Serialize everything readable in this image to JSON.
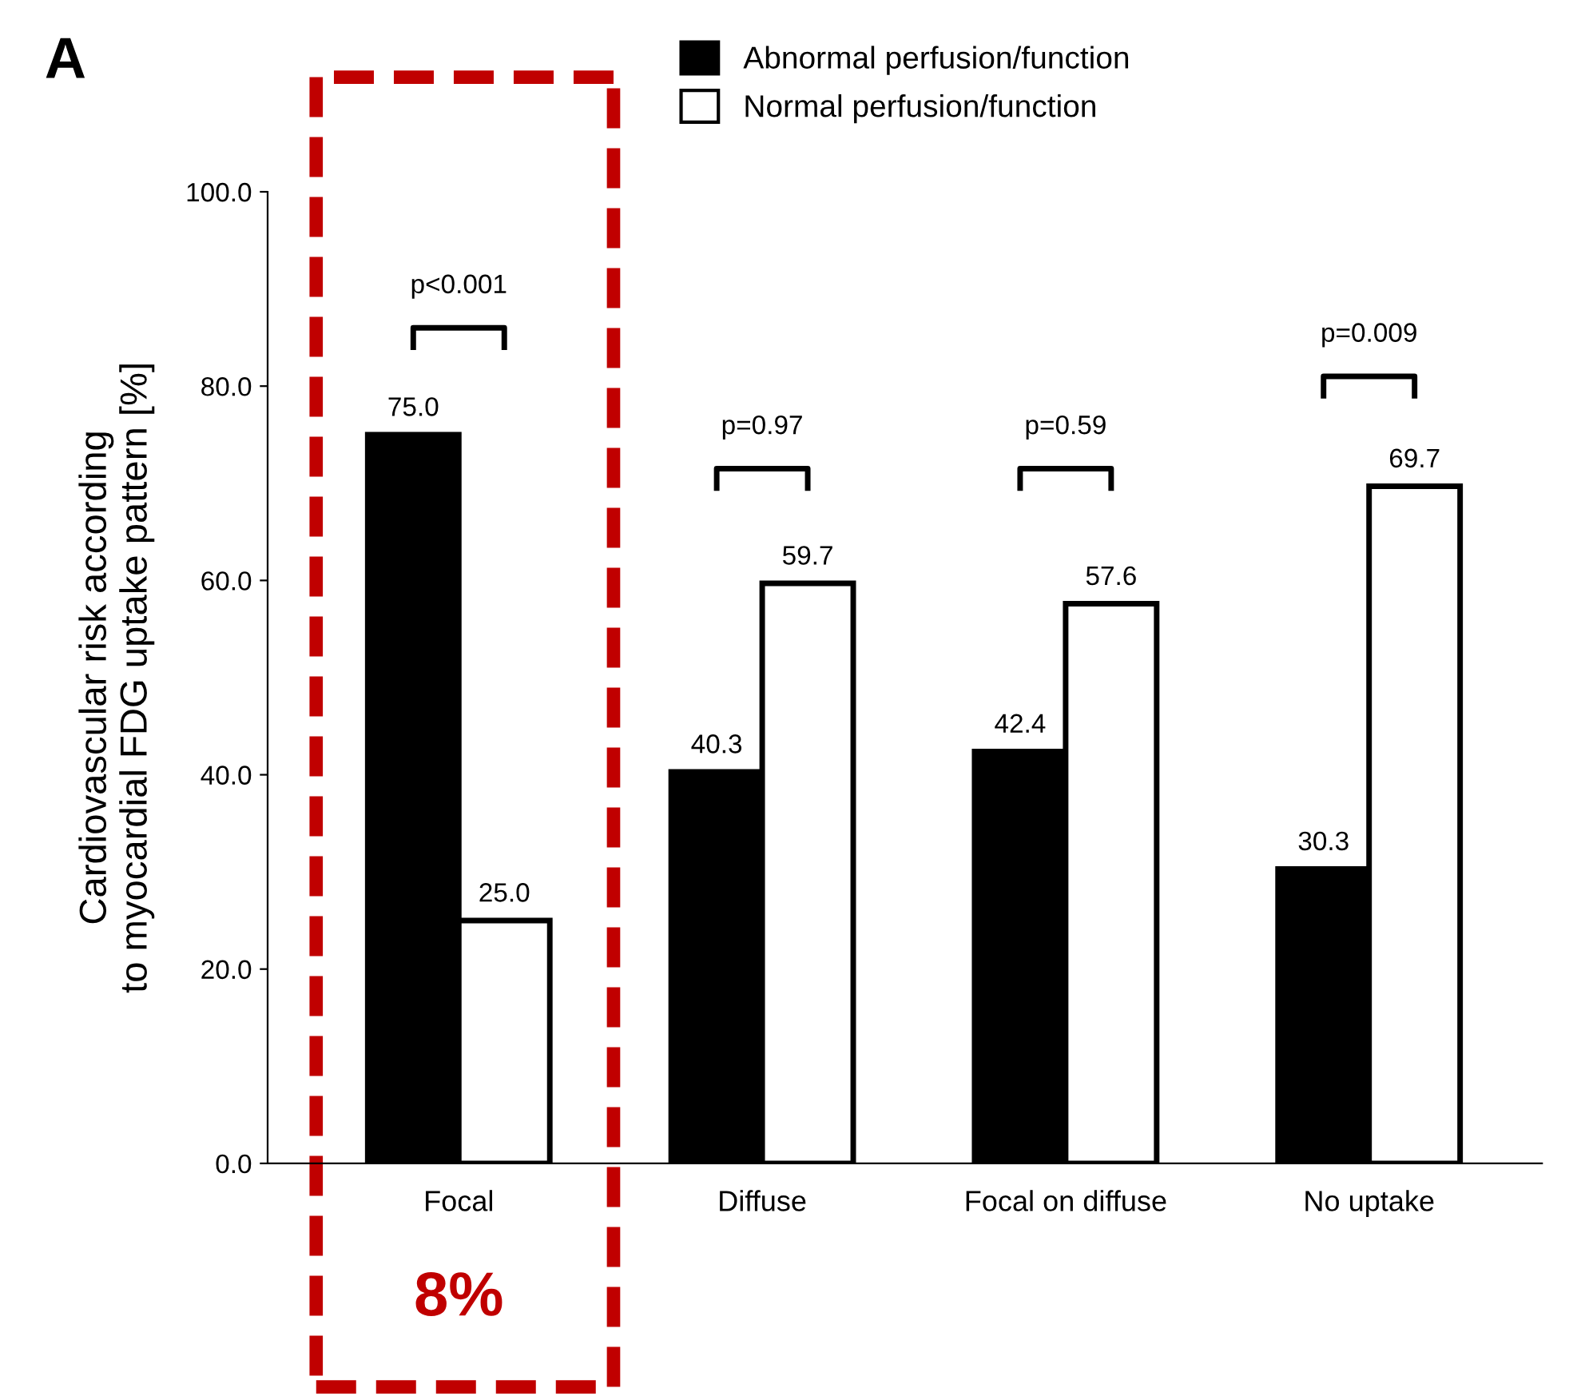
{
  "chart_data": {
    "type": "bar",
    "ylabel": "Cardiovascular risk according\nto myocardial FDG uptake pattern [%]",
    "categories": [
      "Focal",
      "Diffuse",
      "Focal on diffuse",
      "No uptake"
    ],
    "series": [
      {
        "name": "Abnormal perfusion/function",
        "color": "#000000",
        "values": [
          75.0,
          40.3,
          42.4,
          30.3
        ],
        "value_labels": [
          "75.0",
          "40.3",
          "42.4",
          "30.3"
        ]
      },
      {
        "name": "Normal perfusion/function",
        "color": "#ffffff",
        "values": [
          25.0,
          59.7,
          57.6,
          69.7
        ],
        "value_labels": [
          "25.0",
          "59.7",
          "57.6",
          "69.7"
        ]
      }
    ],
    "ylim": [
      0,
      100
    ],
    "yticks": [
      {
        "value": 0,
        "label": "0.0"
      },
      {
        "value": 20,
        "label": "20.0"
      },
      {
        "value": 40,
        "label": "40.0"
      },
      {
        "value": 60,
        "label": "60.0"
      },
      {
        "value": 80,
        "label": "80.0"
      },
      {
        "value": 100,
        "label": "100.0"
      }
    ],
    "annotations": [
      "p<0.001",
      "p=0.97",
      "p=0.59",
      "p=0.009",
      "A",
      "8%"
    ],
    "legend": "top",
    "grid": false
  }
}
